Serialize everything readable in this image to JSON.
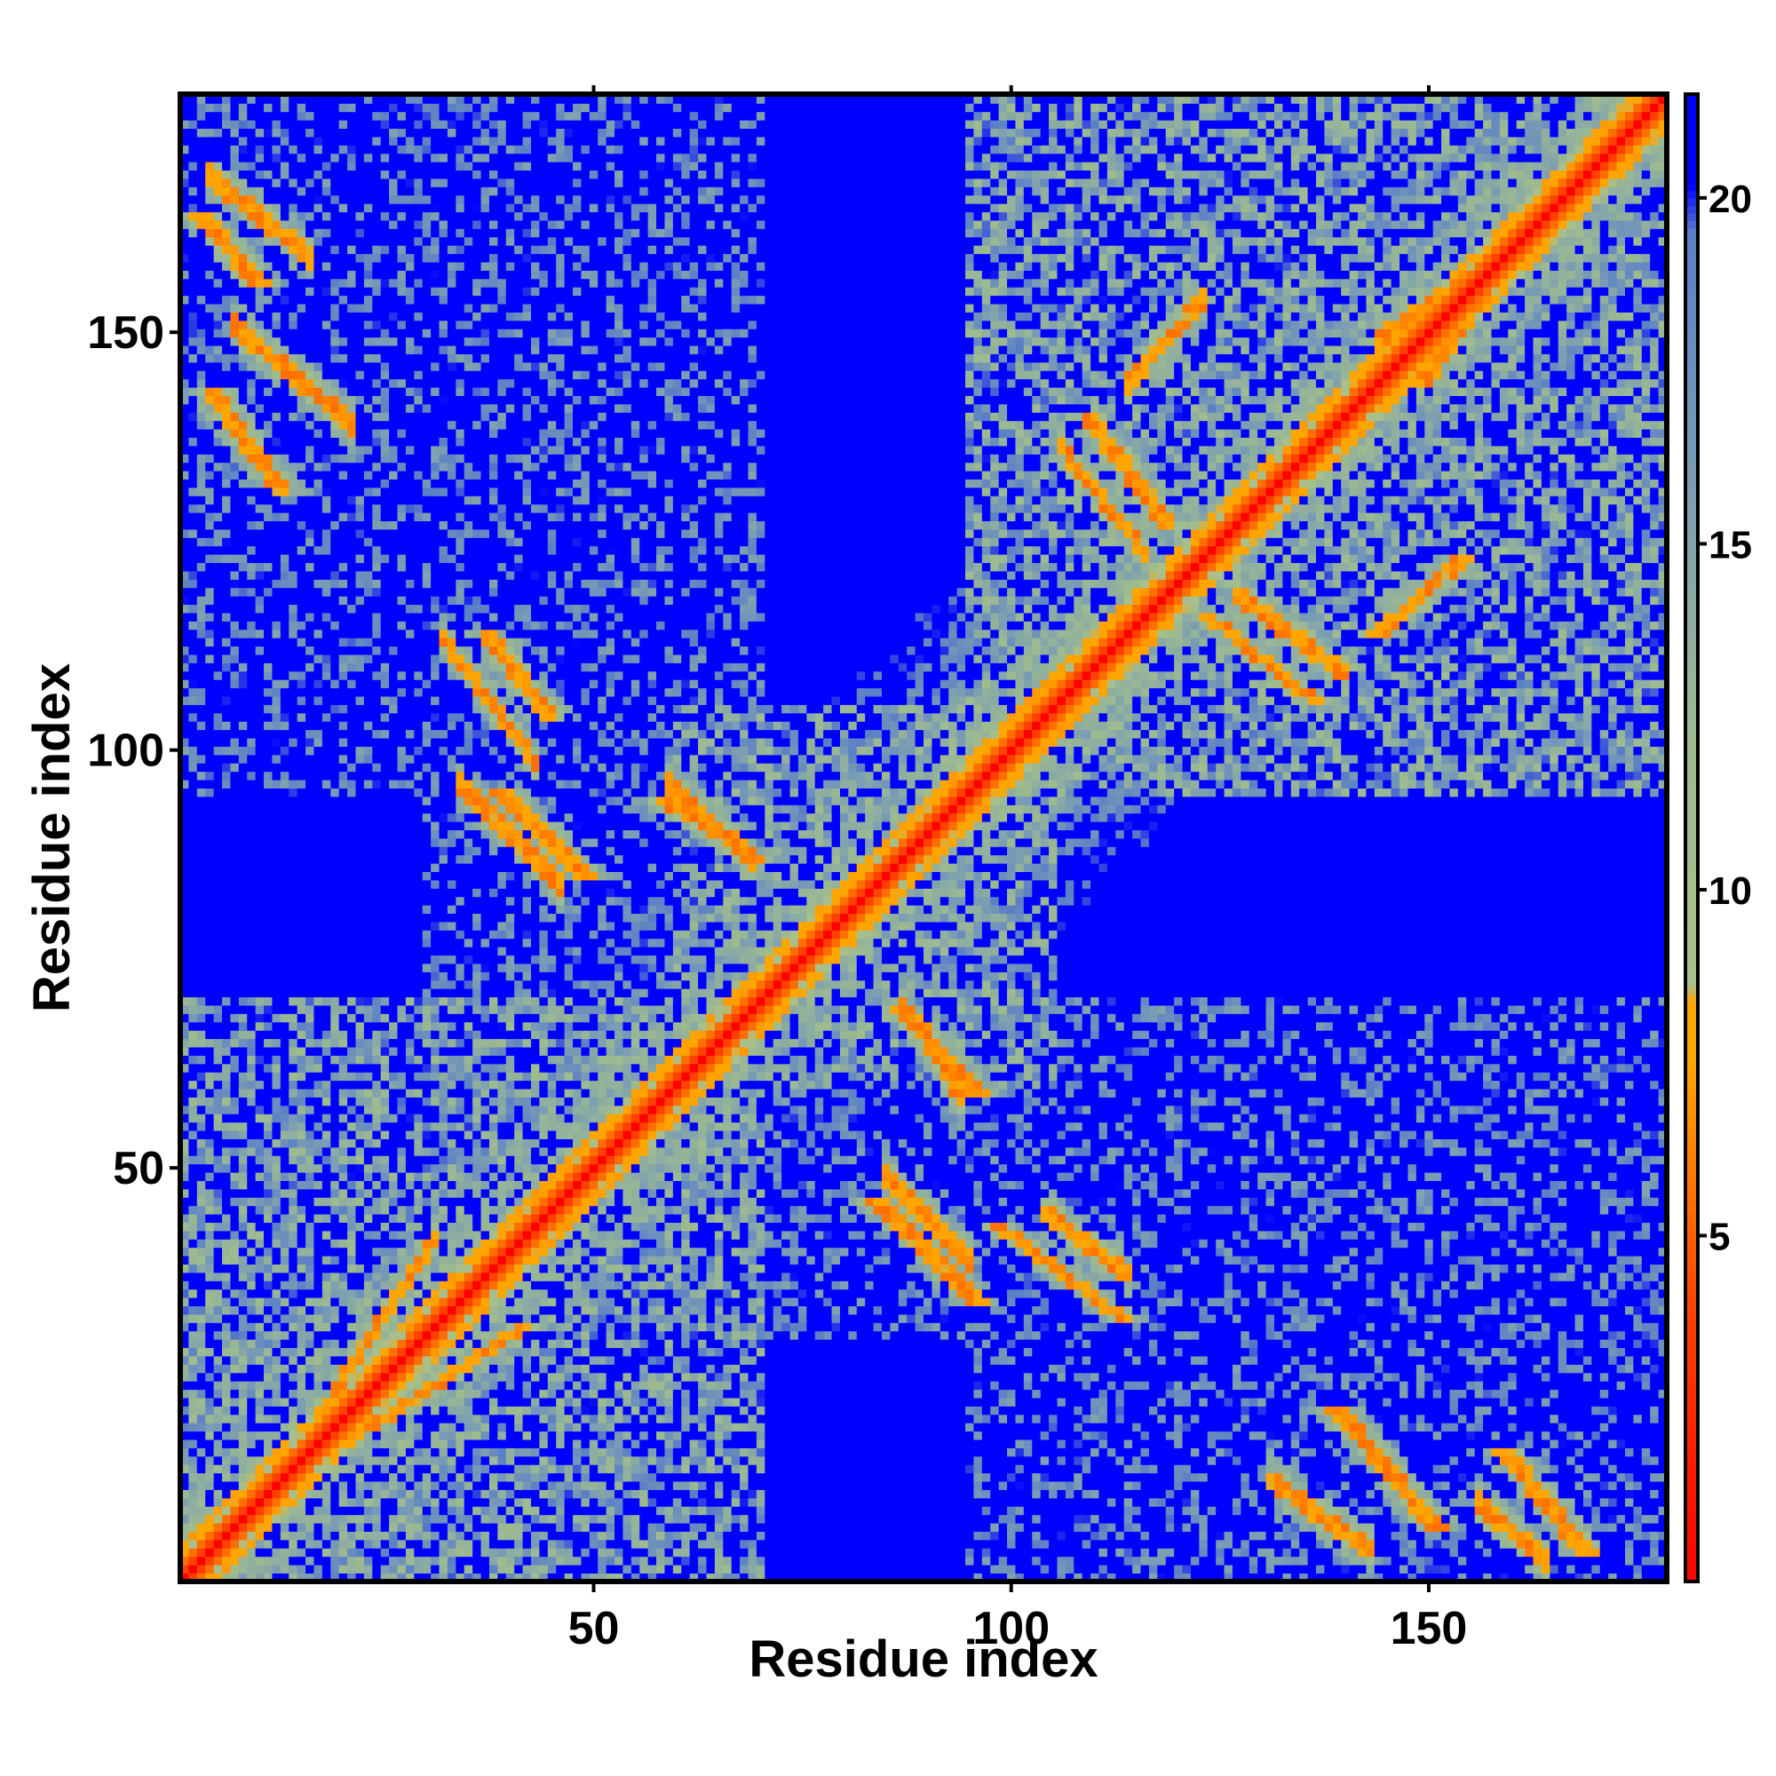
{
  "chart_data": {
    "type": "heatmap",
    "title": "",
    "xlabel": "Residue index",
    "ylabel": "Residue index",
    "xlim": [
      1,
      178
    ],
    "ylim": [
      1,
      178
    ],
    "x_ticks": [
      50,
      100,
      150
    ],
    "y_ticks": [
      50,
      100,
      150
    ],
    "x_tick_labels": [
      "50",
      "100",
      "150"
    ],
    "y_tick_labels": [
      "50",
      "100",
      "150"
    ],
    "grid": false,
    "legend": "none",
    "colorbar": {
      "placement": "right",
      "range": [
        0,
        21.5
      ],
      "ticks": [
        5,
        10,
        15,
        20
      ],
      "tick_labels": [
        "5",
        "10",
        "15",
        "20"
      ],
      "stops": [
        {
          "value": 0,
          "color": "#ff0000"
        },
        {
          "value": 4,
          "color": "#ff4400"
        },
        {
          "value": 7.5,
          "color": "#ffa500"
        },
        {
          "value": 8.4,
          "color": "#ffa500"
        },
        {
          "value": 8.6,
          "color": "#a9bf8c"
        },
        {
          "value": 12,
          "color": "#9fbc8f"
        },
        {
          "value": 16,
          "color": "#7a9cb4"
        },
        {
          "value": 19.5,
          "color": "#5a7fc6"
        },
        {
          "value": 20.2,
          "color": "#0000ff"
        },
        {
          "value": 21.5,
          "color": "#0000ff"
        }
      ]
    },
    "n_residues": 178,
    "matrix_symmetric": true,
    "diagonal_band_width_residues": 3,
    "contact_segments": [
      {
        "a": [
          1,
          18
        ],
        "b": [
          1,
          18
        ],
        "orientation": "parallel"
      },
      {
        "a": [
          20,
          30
        ],
        "b": [
          25,
          40
        ],
        "orientation": "parallel"
      },
      {
        "a": [
          8,
          20
        ],
        "b": [
          140,
          150
        ],
        "orientation": "antiparallel"
      },
      {
        "a": [
          5,
          15
        ],
        "b": [
          160,
          168
        ],
        "orientation": "antiparallel"
      },
      {
        "a": [
          33,
          42
        ],
        "b": [
          100,
          112
        ],
        "orientation": "antiparallel"
      },
      {
        "a": [
          35,
          45
        ],
        "b": [
          85,
          95
        ],
        "orientation": "antiparallel"
      },
      {
        "a": [
          60,
          68
        ],
        "b": [
          88,
          95
        ],
        "orientation": "antiparallel"
      },
      {
        "a": [
          86,
          94
        ],
        "b": [
          40,
          48
        ],
        "orientation": "antiparallel"
      },
      {
        "a": [
          88,
          93
        ],
        "b": [
          60,
          68
        ],
        "orientation": "antiparallel"
      },
      {
        "a": [
          105,
          113
        ],
        "b": [
          38,
          44
        ],
        "orientation": "antiparallel"
      },
      {
        "a": [
          132,
          142
        ],
        "b": [
          5,
          12
        ],
        "orientation": "antiparallel"
      },
      {
        "a": [
          157,
          163
        ],
        "b": [
          4,
          9
        ],
        "orientation": "antiparallel"
      },
      {
        "a": [
          107,
          115
        ],
        "b": [
          125,
          135
        ],
        "orientation": "antiparallel"
      },
      {
        "a": [
          115,
          122
        ],
        "b": [
          145,
          153
        ],
        "orientation": "parallel"
      },
      {
        "a": [
          128,
          139
        ],
        "b": [
          110,
          118
        ],
        "orientation": "antiparallel"
      },
      {
        "a": [
          145,
          160
        ],
        "b": [
          150,
          160
        ],
        "orientation": "parallel"
      }
    ],
    "domain_blocks": [
      {
        "x": [
          1,
          70
        ],
        "y": [
          1,
          70
        ],
        "density": "high"
      },
      {
        "x": [
          60,
          105
        ],
        "y": [
          60,
          105
        ],
        "density": "high"
      },
      {
        "x": [
          95,
          178
        ],
        "y": [
          95,
          178
        ],
        "density": "high"
      },
      {
        "x": [
          1,
          70
        ],
        "y": [
          95,
          178
        ],
        "density": "medium"
      },
      {
        "x": [
          95,
          178
        ],
        "y": [
          1,
          70
        ],
        "density": "medium"
      },
      {
        "x": [
          30,
          70
        ],
        "y": [
          60,
          110
        ],
        "density": "medium"
      },
      {
        "x": [
          60,
          110
        ],
        "y": [
          30,
          70
        ],
        "density": "medium"
      }
    ]
  }
}
